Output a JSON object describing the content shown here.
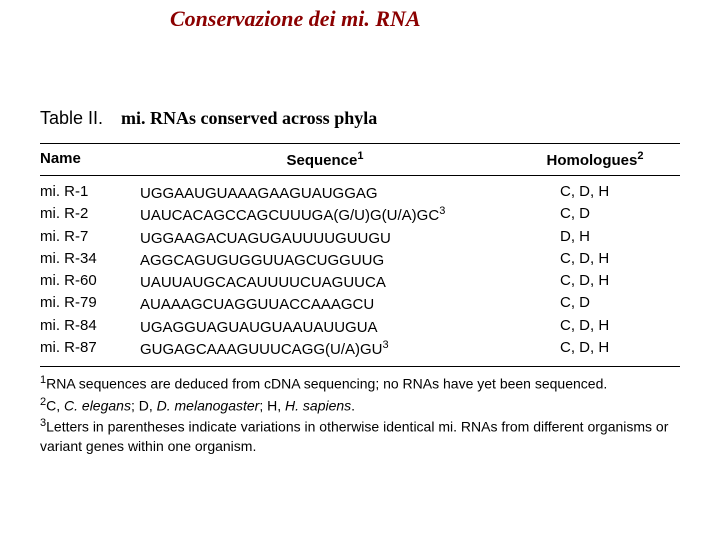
{
  "title": "Conservazione dei mi. RNA",
  "caption": {
    "lead": "Table II.",
    "body": "mi. RNAs conserved across phyla"
  },
  "columns": {
    "name": {
      "label": "Name"
    },
    "seq": {
      "label": "Sequence",
      "sup": "1"
    },
    "hom": {
      "label": "Homologues",
      "sup": "2"
    }
  },
  "rows": [
    {
      "name": "mi. R-1",
      "seq": "UGGAAUGUAAAGAAGUAUGGAG",
      "seq_sup": "",
      "hom": "C, D, H"
    },
    {
      "name": "mi. R-2",
      "seq": "UAUCACAGCCAGCUUUGA(G/U)G(U/A)GC",
      "seq_sup": "3",
      "hom": "C, D"
    },
    {
      "name": "mi. R-7",
      "seq": "UGGAAGACUAGUGAUUUUGUUGU",
      "seq_sup": "",
      "hom": "D, H"
    },
    {
      "name": "mi. R-34",
      "seq": "AGGCAGUGUGGUUAGCUGGUUG",
      "seq_sup": "",
      "hom": "C, D, H"
    },
    {
      "name": "mi. R-60",
      "seq": "UAUUAUGCACAUUUUCUAGUUCA",
      "seq_sup": "",
      "hom": "C, D, H"
    },
    {
      "name": "mi. R-79",
      "seq": "AUAAAGCUAGGUUACCAAAGCU",
      "seq_sup": "",
      "hom": "C, D"
    },
    {
      "name": "mi. R-84",
      "seq": "UGAGGUAGUAUGUAAUAUUGUA",
      "seq_sup": "",
      "hom": "C, D, H"
    },
    {
      "name": "mi. R-87",
      "seq": "GUGAGCAAAGUUUCAGG(U/A)GU",
      "seq_sup": "3",
      "hom": "C, D, H"
    }
  ],
  "footnotes": {
    "f1": {
      "sup": "1",
      "text": "RNA sequences are deduced from cDNA sequencing; no RNAs have yet been sequenced."
    },
    "f2": {
      "sup": "2",
      "prefix": "C, ",
      "em1": "C. elegans",
      "mid1": "; D, ",
      "em2": "D. melanogaster",
      "mid2": "; H, ",
      "em3": "H. sapiens",
      "suffix": "."
    },
    "f3": {
      "sup": "3",
      "text": "Letters in parentheses indicate variations in otherwise identical mi. RNAs from different organisms or variant genes within one organism."
    }
  },
  "colors": {
    "title": "#8b0000",
    "text": "#000000",
    "background": "#ffffff"
  },
  "typography": {
    "title_fontsize": 22,
    "caption_fontsize": 18,
    "header_fontsize": 15,
    "body_fontsize": 15,
    "footnote_fontsize": 14
  }
}
